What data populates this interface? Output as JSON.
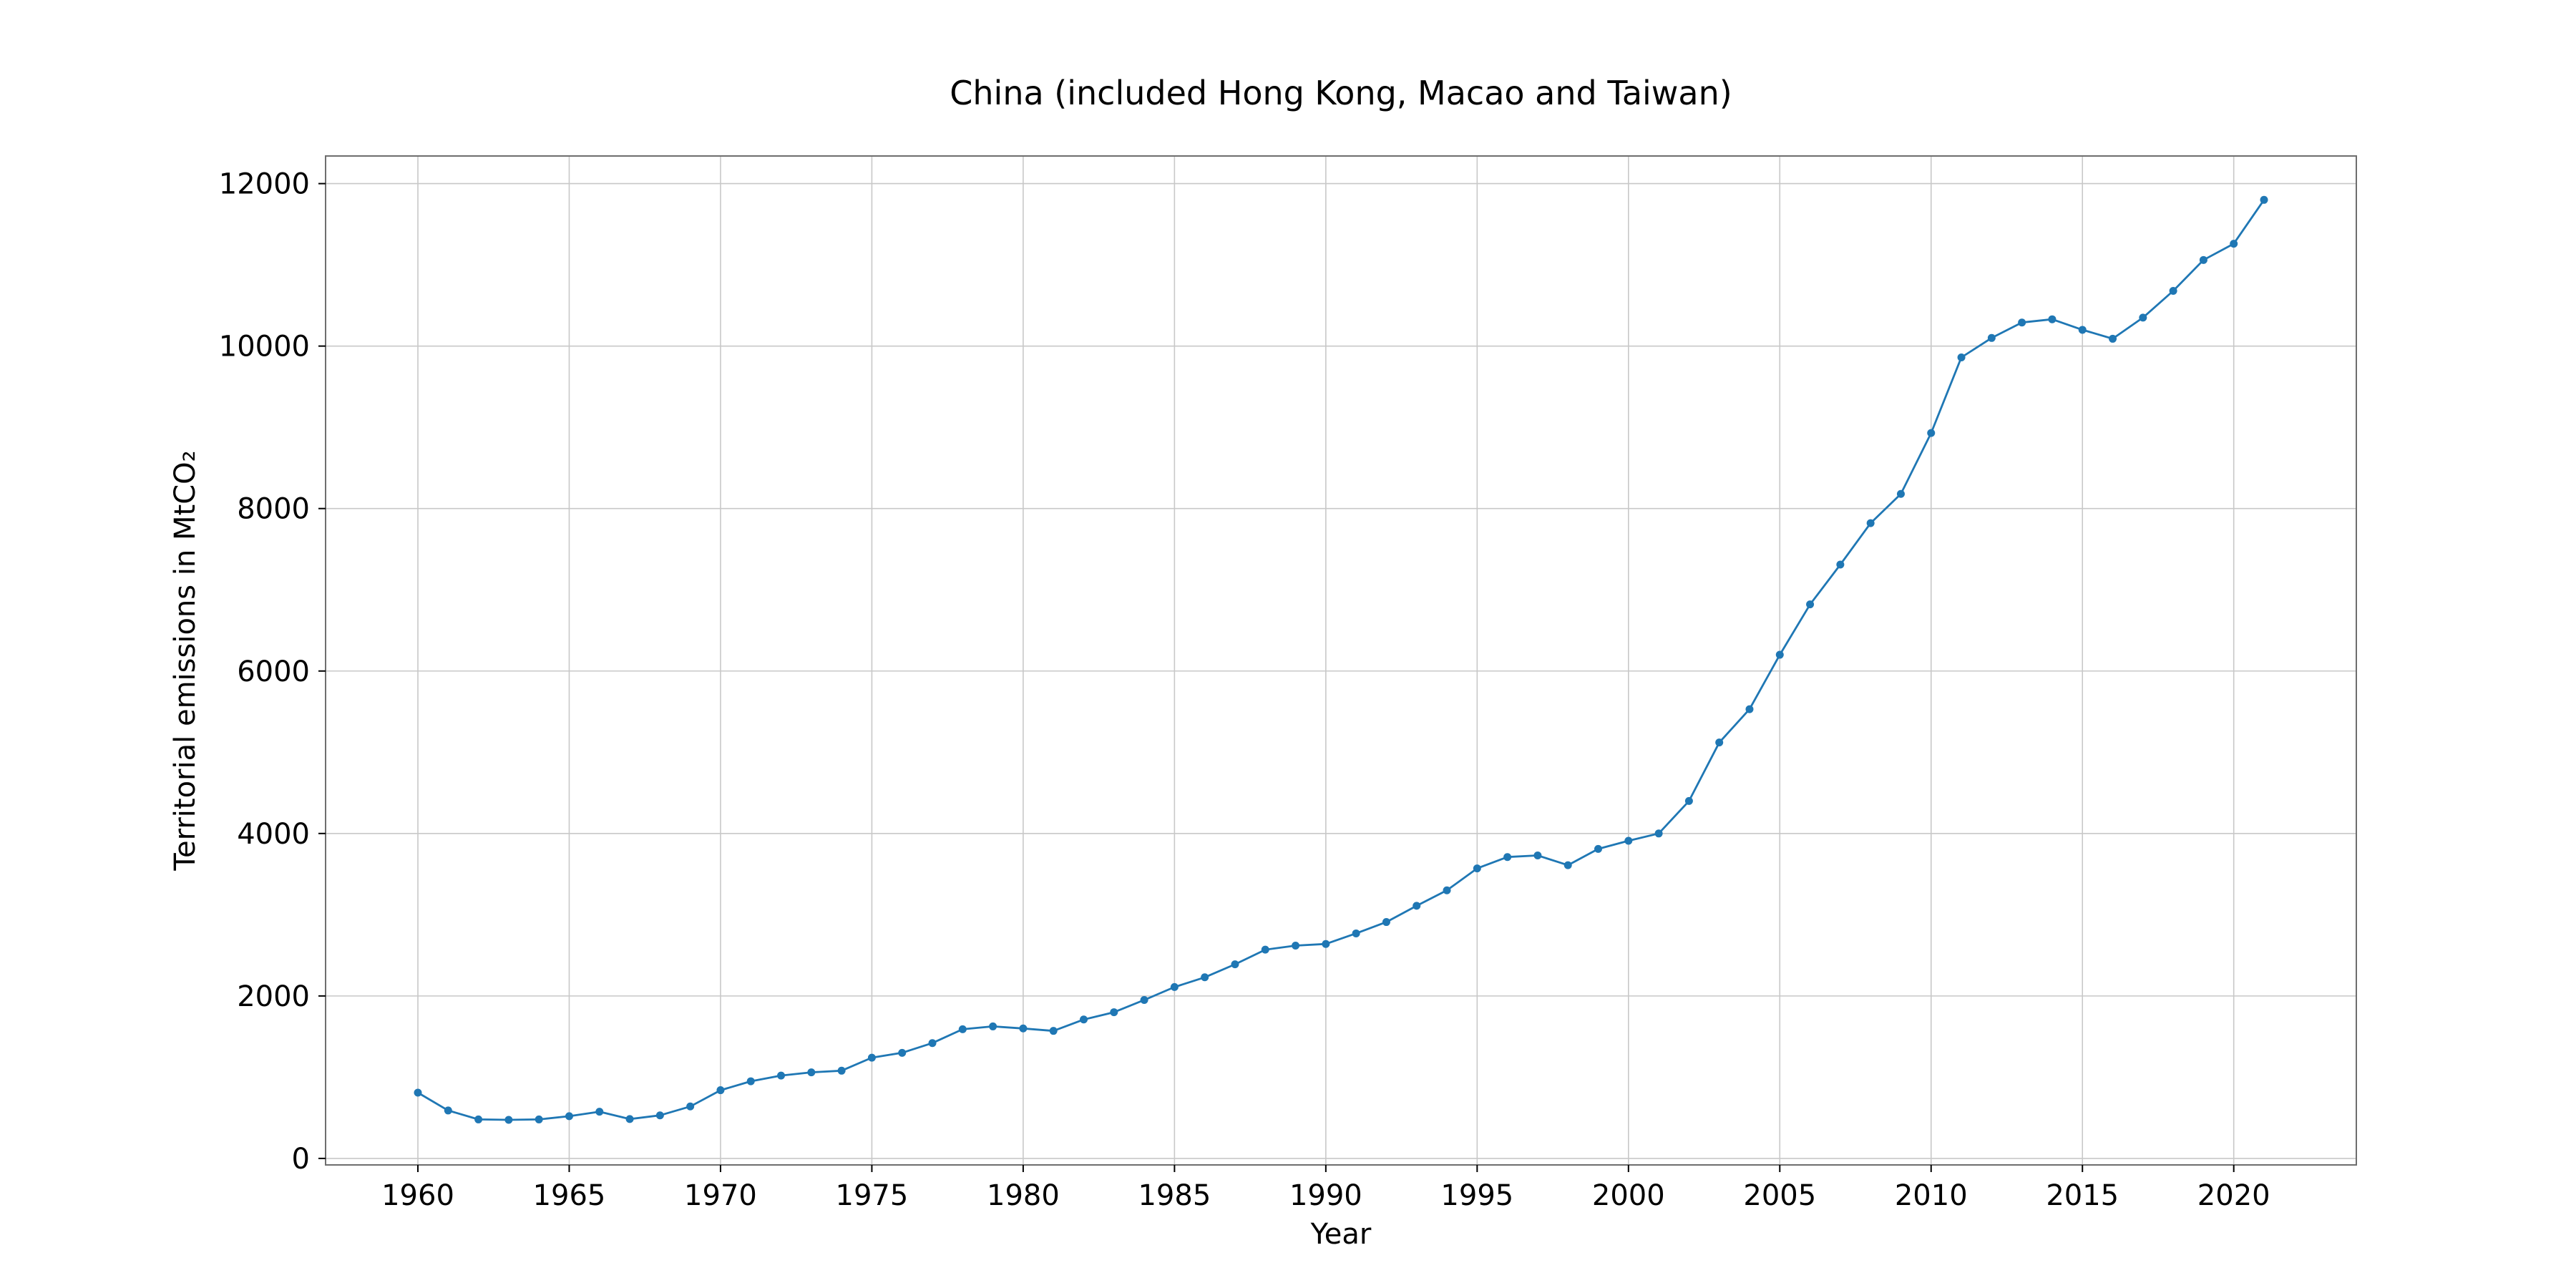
{
  "chart_data": {
    "type": "line",
    "title": "China (included Hong Kong, Macao and Taiwan)",
    "xlabel": "Year",
    "ylabel": "Territorial emissions in MtCO₂",
    "xlim": [
      1956.95,
      2024.05
    ],
    "ylim": [
      -80,
      12340
    ],
    "xticks": [
      1960,
      1965,
      1970,
      1975,
      1980,
      1985,
      1990,
      1995,
      2000,
      2005,
      2010,
      2015,
      2020
    ],
    "yticks": [
      0,
      2000,
      4000,
      6000,
      8000,
      10000,
      12000
    ],
    "grid": true,
    "line_color": "#1f77b4",
    "series": [
      {
        "x": [
          1960,
          1961,
          1962,
          1963,
          1964,
          1965,
          1966,
          1967,
          1968,
          1969,
          1970,
          1971,
          1972,
          1973,
          1974,
          1975,
          1976,
          1977,
          1978,
          1979,
          1980,
          1981,
          1982,
          1983,
          1984,
          1985,
          1986,
          1987,
          1988,
          1989,
          1990,
          1991,
          1992,
          1993,
          1994,
          1995,
          1996,
          1997,
          1998,
          1999,
          2000,
          2001,
          2002,
          2003,
          2004,
          2005,
          2006,
          2007,
          2008,
          2009,
          2010,
          2011,
          2012,
          2013,
          2014,
          2015,
          2016,
          2017,
          2018,
          2019,
          2020,
          2021
        ],
        "values": [
          810,
          590,
          480,
          475,
          480,
          520,
          575,
          485,
          530,
          640,
          840,
          950,
          1020,
          1060,
          1080,
          1240,
          1300,
          1420,
          1590,
          1625,
          1600,
          1570,
          1710,
          1800,
          1950,
          2110,
          2230,
          2390,
          2570,
          2620,
          2640,
          2770,
          2910,
          3110,
          3300,
          3570,
          3710,
          3730,
          3610,
          3810,
          3910,
          4000,
          4400,
          5120,
          5530,
          6200,
          6820,
          7310,
          7820,
          8180,
          8930,
          9860,
          10100,
          10290,
          10330,
          10200,
          10090,
          10350,
          10680,
          11060,
          11260,
          11800
        ]
      }
    ]
  }
}
